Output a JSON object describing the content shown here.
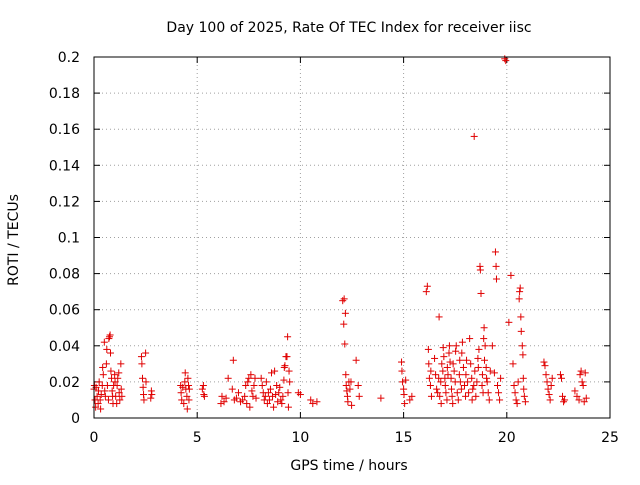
{
  "chart_data": {
    "type": "scatter",
    "title": "Day 100 of 2025, Rate Of TEC Index for receiver iisc",
    "xlabel": "GPS time / hours",
    "ylabel": "ROTI / TECUs",
    "xlim": [
      0,
      25
    ],
    "ylim": [
      0,
      0.2
    ],
    "x_ticks": [
      0,
      5,
      10,
      15,
      20,
      25
    ],
    "y_ticks": [
      0,
      0.02,
      0.04,
      0.06,
      0.08,
      0.1,
      0.12,
      0.14,
      0.16,
      0.18,
      0.2
    ],
    "grid": true,
    "legend": "none",
    "marker": "plus",
    "color": "#e00000",
    "points": [
      [
        0.0,
        0.016
      ],
      [
        0.02,
        0.018
      ],
      [
        0.05,
        0.01
      ],
      [
        0.08,
        0.006
      ],
      [
        0.1,
        0.017
      ],
      [
        0.15,
        0.012
      ],
      [
        0.2,
        0.008
      ],
      [
        0.22,
        0.015
      ],
      [
        0.25,
        0.02
      ],
      [
        0.3,
        0.01
      ],
      [
        0.32,
        0.005
      ],
      [
        0.35,
        0.013
      ],
      [
        0.4,
        0.018
      ],
      [
        0.42,
        0.028
      ],
      [
        0.45,
        0.024
      ],
      [
        0.5,
        0.042
      ],
      [
        0.52,
        0.015
      ],
      [
        0.55,
        0.012
      ],
      [
        0.6,
        0.03
      ],
      [
        0.62,
        0.038
      ],
      [
        0.65,
        0.018
      ],
      [
        0.7,
        0.01
      ],
      [
        0.72,
        0.044
      ],
      [
        0.75,
        0.045
      ],
      [
        0.78,
        0.046
      ],
      [
        0.8,
        0.036
      ],
      [
        0.82,
        0.026
      ],
      [
        0.85,
        0.022
      ],
      [
        0.88,
        0.015
      ],
      [
        0.9,
        0.012
      ],
      [
        0.92,
        0.008
      ],
      [
        0.95,
        0.018
      ],
      [
        1.0,
        0.024
      ],
      [
        1.02,
        0.02
      ],
      [
        1.05,
        0.012
      ],
      [
        1.1,
        0.008
      ],
      [
        1.12,
        0.018
      ],
      [
        1.15,
        0.022
      ],
      [
        1.2,
        0.025
      ],
      [
        1.22,
        0.014
      ],
      [
        1.25,
        0.01
      ],
      [
        1.3,
        0.03
      ],
      [
        1.32,
        0.016
      ],
      [
        1.35,
        0.012
      ],
      [
        2.3,
        0.034
      ],
      [
        2.32,
        0.03
      ],
      [
        2.35,
        0.022
      ],
      [
        2.38,
        0.017
      ],
      [
        2.4,
        0.013
      ],
      [
        2.42,
        0.01
      ],
      [
        2.5,
        0.036
      ],
      [
        2.52,
        0.02
      ],
      [
        2.75,
        0.011
      ],
      [
        2.78,
        0.015
      ],
      [
        2.8,
        0.013
      ],
      [
        4.2,
        0.018
      ],
      [
        4.22,
        0.014
      ],
      [
        4.25,
        0.01
      ],
      [
        4.3,
        0.017
      ],
      [
        4.35,
        0.008
      ],
      [
        4.4,
        0.02
      ],
      [
        4.42,
        0.025
      ],
      [
        4.45,
        0.016
      ],
      [
        4.5,
        0.012
      ],
      [
        4.52,
        0.005
      ],
      [
        4.55,
        0.022
      ],
      [
        4.58,
        0.018
      ],
      [
        4.6,
        0.01
      ],
      [
        4.62,
        0.016
      ],
      [
        5.25,
        0.016
      ],
      [
        5.3,
        0.018
      ],
      [
        5.32,
        0.013
      ],
      [
        5.35,
        0.012
      ],
      [
        6.15,
        0.008
      ],
      [
        6.2,
        0.012
      ],
      [
        6.3,
        0.009
      ],
      [
        6.4,
        0.011
      ],
      [
        6.5,
        0.022
      ],
      [
        6.7,
        0.016
      ],
      [
        6.75,
        0.032
      ],
      [
        6.8,
        0.01
      ],
      [
        6.9,
        0.011
      ],
      [
        7.0,
        0.014
      ],
      [
        7.1,
        0.009
      ],
      [
        7.2,
        0.01
      ],
      [
        7.3,
        0.012
      ],
      [
        7.35,
        0.018
      ],
      [
        7.4,
        0.008
      ],
      [
        7.45,
        0.02
      ],
      [
        7.5,
        0.022
      ],
      [
        7.55,
        0.006
      ],
      [
        7.6,
        0.024
      ],
      [
        7.65,
        0.015
      ],
      [
        7.7,
        0.012
      ],
      [
        7.75,
        0.018
      ],
      [
        7.8,
        0.022
      ],
      [
        7.85,
        0.011
      ],
      [
        8.1,
        0.022
      ],
      [
        8.15,
        0.018
      ],
      [
        8.2,
        0.014
      ],
      [
        8.25,
        0.01
      ],
      [
        8.3,
        0.012
      ],
      [
        8.35,
        0.02
      ],
      [
        8.4,
        0.008
      ],
      [
        8.45,
        0.014
      ],
      [
        8.5,
        0.01
      ],
      [
        8.55,
        0.016
      ],
      [
        8.6,
        0.025
      ],
      [
        8.65,
        0.012
      ],
      [
        8.7,
        0.006
      ],
      [
        8.75,
        0.026
      ],
      [
        8.8,
        0.013
      ],
      [
        8.85,
        0.018
      ],
      [
        8.9,
        0.009
      ],
      [
        8.95,
        0.014
      ],
      [
        9.0,
        0.017
      ],
      [
        9.05,
        0.01
      ],
      [
        9.1,
        0.008
      ],
      [
        9.15,
        0.012
      ],
      [
        9.2,
        0.021
      ],
      [
        9.22,
        0.028
      ],
      [
        9.25,
        0.029
      ],
      [
        9.3,
        0.034
      ],
      [
        9.35,
        0.034
      ],
      [
        9.38,
        0.045
      ],
      [
        9.4,
        0.014
      ],
      [
        9.42,
        0.006
      ],
      [
        9.45,
        0.026
      ],
      [
        9.48,
        0.02
      ],
      [
        9.9,
        0.014
      ],
      [
        10.0,
        0.013
      ],
      [
        10.5,
        0.01
      ],
      [
        10.6,
        0.008
      ],
      [
        10.8,
        0.009
      ],
      [
        12.05,
        0.065
      ],
      [
        12.1,
        0.052
      ],
      [
        12.12,
        0.066
      ],
      [
        12.15,
        0.041
      ],
      [
        12.18,
        0.058
      ],
      [
        12.2,
        0.024
      ],
      [
        12.22,
        0.018
      ],
      [
        12.25,
        0.015
      ],
      [
        12.28,
        0.012
      ],
      [
        12.3,
        0.009
      ],
      [
        12.35,
        0.02
      ],
      [
        12.4,
        0.016
      ],
      [
        12.45,
        0.02
      ],
      [
        12.48,
        0.007
      ],
      [
        12.7,
        0.032
      ],
      [
        12.8,
        0.018
      ],
      [
        12.85,
        0.012
      ],
      [
        13.9,
        0.011
      ],
      [
        14.9,
        0.031
      ],
      [
        14.92,
        0.026
      ],
      [
        14.95,
        0.02
      ],
      [
        15.0,
        0.016
      ],
      [
        15.02,
        0.013
      ],
      [
        15.05,
        0.008
      ],
      [
        15.1,
        0.021
      ],
      [
        15.3,
        0.01
      ],
      [
        15.4,
        0.012
      ],
      [
        16.1,
        0.07
      ],
      [
        16.15,
        0.073
      ],
      [
        16.2,
        0.038
      ],
      [
        16.22,
        0.03
      ],
      [
        16.25,
        0.022
      ],
      [
        16.3,
        0.018
      ],
      [
        16.32,
        0.026
      ],
      [
        16.35,
        0.012
      ],
      [
        16.5,
        0.033
      ],
      [
        16.55,
        0.024
      ],
      [
        16.6,
        0.016
      ],
      [
        16.65,
        0.014
      ],
      [
        16.7,
        0.022
      ],
      [
        16.72,
        0.056
      ],
      [
        16.75,
        0.012
      ],
      [
        16.8,
        0.02
      ],
      [
        16.82,
        0.008
      ],
      [
        16.85,
        0.03
      ],
      [
        16.9,
        0.026
      ],
      [
        16.92,
        0.039
      ],
      [
        16.95,
        0.034
      ],
      [
        17.0,
        0.022
      ],
      [
        17.02,
        0.018
      ],
      [
        17.05,
        0.014
      ],
      [
        17.1,
        0.01
      ],
      [
        17.12,
        0.028
      ],
      [
        17.15,
        0.024
      ],
      [
        17.2,
        0.036
      ],
      [
        17.22,
        0.04
      ],
      [
        17.25,
        0.031
      ],
      [
        17.3,
        0.022
      ],
      [
        17.32,
        0.016
      ],
      [
        17.35,
        0.012
      ],
      [
        17.38,
        0.008
      ],
      [
        17.4,
        0.03
      ],
      [
        17.45,
        0.026
      ],
      [
        17.5,
        0.02
      ],
      [
        17.52,
        0.037
      ],
      [
        17.55,
        0.04
      ],
      [
        17.6,
        0.014
      ],
      [
        17.65,
        0.01
      ],
      [
        17.7,
        0.024
      ],
      [
        17.72,
        0.032
      ],
      [
        17.75,
        0.02
      ],
      [
        17.8,
        0.016
      ],
      [
        17.82,
        0.036
      ],
      [
        17.85,
        0.042
      ],
      [
        17.9,
        0.028
      ],
      [
        17.95,
        0.018
      ],
      [
        18.0,
        0.012
      ],
      [
        18.02,
        0.024
      ],
      [
        18.05,
        0.032
      ],
      [
        18.1,
        0.02
      ],
      [
        18.15,
        0.014
      ],
      [
        18.2,
        0.044
      ],
      [
        18.25,
        0.03
      ],
      [
        18.3,
        0.022
      ],
      [
        18.32,
        0.01
      ],
      [
        18.35,
        0.016
      ],
      [
        18.4,
        0.018
      ],
      [
        18.42,
        0.156
      ],
      [
        18.45,
        0.026
      ],
      [
        18.5,
        0.012
      ],
      [
        18.55,
        0.02
      ],
      [
        18.6,
        0.033
      ],
      [
        18.62,
        0.028
      ],
      [
        18.65,
        0.038
      ],
      [
        18.7,
        0.084
      ],
      [
        18.72,
        0.082
      ],
      [
        18.75,
        0.069
      ],
      [
        18.8,
        0.018
      ],
      [
        18.82,
        0.024
      ],
      [
        18.85,
        0.014
      ],
      [
        18.88,
        0.044
      ],
      [
        18.9,
        0.05
      ],
      [
        18.92,
        0.032
      ],
      [
        18.95,
        0.04
      ],
      [
        19.0,
        0.028
      ],
      [
        19.02,
        0.022
      ],
      [
        19.05,
        0.02
      ],
      [
        19.1,
        0.014
      ],
      [
        19.15,
        0.01
      ],
      [
        19.2,
        0.026
      ],
      [
        19.3,
        0.04
      ],
      [
        19.4,
        0.025
      ],
      [
        19.45,
        0.092
      ],
      [
        19.48,
        0.084
      ],
      [
        19.5,
        0.077
      ],
      [
        19.55,
        0.018
      ],
      [
        19.6,
        0.014
      ],
      [
        19.65,
        0.01
      ],
      [
        19.7,
        0.022
      ],
      [
        19.9,
        0.199
      ],
      [
        19.95,
        0.198
      ],
      [
        20.1,
        0.053
      ],
      [
        20.2,
        0.079
      ],
      [
        20.3,
        0.03
      ],
      [
        20.35,
        0.018
      ],
      [
        20.4,
        0.014
      ],
      [
        20.45,
        0.01
      ],
      [
        20.5,
        0.008
      ],
      [
        20.55,
        0.02
      ],
      [
        20.6,
        0.066
      ],
      [
        20.62,
        0.07
      ],
      [
        20.65,
        0.072
      ],
      [
        20.68,
        0.056
      ],
      [
        20.7,
        0.048
      ],
      [
        20.75,
        0.04
      ],
      [
        20.78,
        0.035
      ],
      [
        20.8,
        0.022
      ],
      [
        20.82,
        0.016
      ],
      [
        20.85,
        0.012
      ],
      [
        20.9,
        0.009
      ],
      [
        21.8,
        0.031
      ],
      [
        21.85,
        0.029
      ],
      [
        21.9,
        0.024
      ],
      [
        21.95,
        0.02
      ],
      [
        22.0,
        0.016
      ],
      [
        22.05,
        0.013
      ],
      [
        22.1,
        0.01
      ],
      [
        22.15,
        0.018
      ],
      [
        22.2,
        0.022
      ],
      [
        22.6,
        0.024
      ],
      [
        22.65,
        0.022
      ],
      [
        22.7,
        0.012
      ],
      [
        22.75,
        0.009
      ],
      [
        22.8,
        0.01
      ],
      [
        23.3,
        0.015
      ],
      [
        23.4,
        0.012
      ],
      [
        23.5,
        0.01
      ],
      [
        23.55,
        0.024
      ],
      [
        23.6,
        0.026
      ],
      [
        23.65,
        0.02
      ],
      [
        23.7,
        0.018
      ],
      [
        23.75,
        0.009
      ],
      [
        23.8,
        0.025
      ],
      [
        23.85,
        0.011
      ]
    ]
  }
}
